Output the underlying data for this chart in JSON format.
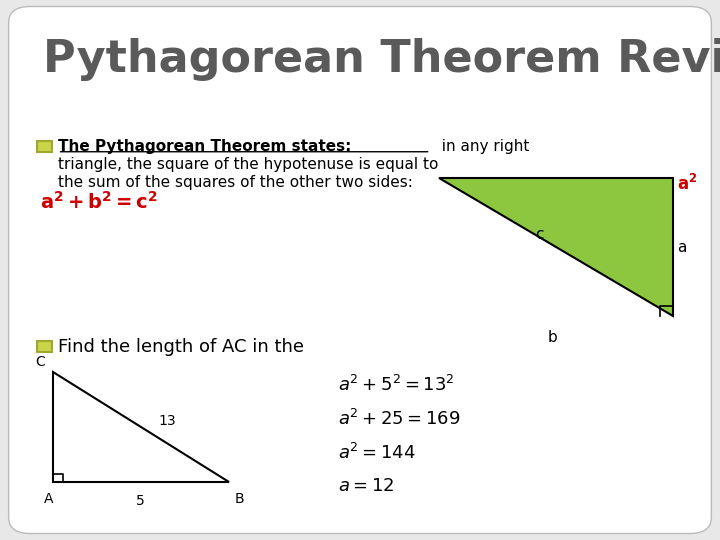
{
  "title": "Pythagorean Theorem Review",
  "title_color": "#5a5a5a",
  "title_fontsize": 32,
  "bg_color": "#e8e8e8",
  "slide_bg": "#ffffff",
  "bullet1_bold": "The Pythagorean Theorem states:",
  "bullet1_line1_rest": "  in any right",
  "bullet1_line2": "triangle, the square of the hypotenuse is equal to",
  "bullet1_line3": "the sum of the squares of the other two sides:",
  "tri1_color": "#8dc63f",
  "tri1_edge": "#000000",
  "bullet2_text": "Find the length of AC in the",
  "eq1": "$a^2 + 5^2 = 13^2$",
  "eq2": "$a^2 + 25 = 169$",
  "eq3": "$a^2 = 144$",
  "eq4": "$a = 12$",
  "red_color": "#cc0000",
  "bullet_face": "#c8d44a",
  "bullet_edge": "#a0a830"
}
